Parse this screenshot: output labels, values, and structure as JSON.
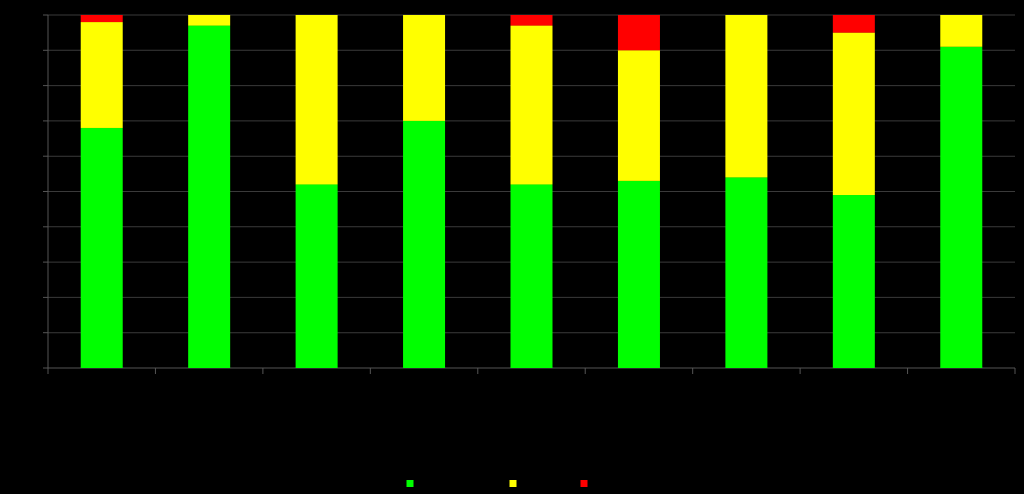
{
  "chart_data": {
    "type": "stacked-bar",
    "categories": [
      null,
      null,
      null,
      null,
      null,
      null,
      null,
      null,
      null
    ],
    "series": [
      {
        "color": "#00ff00",
        "values": [
          68,
          97,
          52,
          70,
          52,
          53,
          54,
          49,
          91
        ]
      },
      {
        "color": "#ffff00",
        "values": [
          30,
          3,
          48,
          30,
          45,
          37,
          46,
          46,
          9
        ]
      },
      {
        "color": "#ff0000",
        "values": [
          2,
          0,
          0,
          0,
          3,
          10,
          0,
          5,
          0
        ]
      }
    ],
    "ylim": [
      0,
      100
    ],
    "yticks": [
      0,
      10,
      20,
      30,
      40,
      50,
      60,
      70,
      80,
      90,
      100
    ],
    "grid": true
  }
}
